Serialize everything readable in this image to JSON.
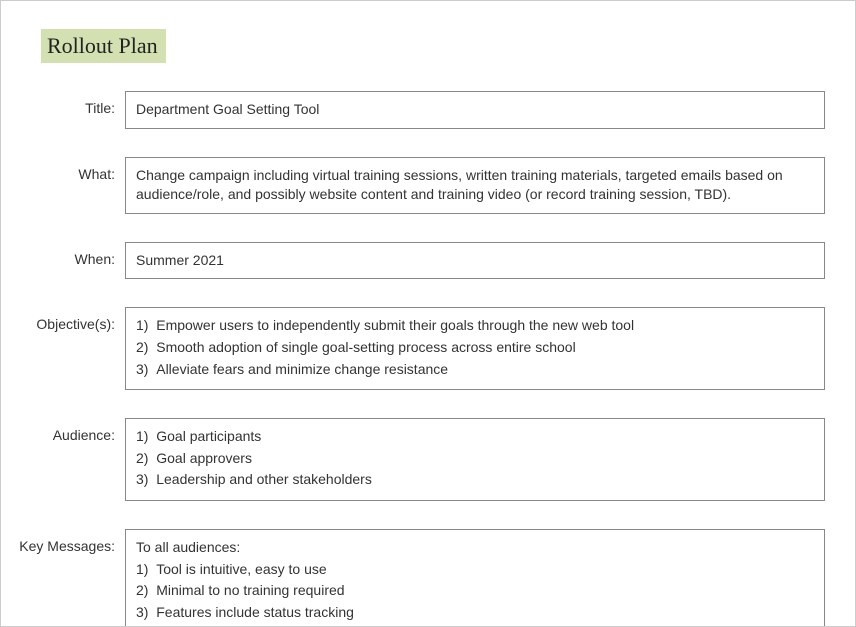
{
  "header": {
    "title": "Rollout Plan",
    "highlight_color": "#d3e0b1",
    "title_font": "Georgia",
    "title_fontsize": 22
  },
  "colors": {
    "page_border": "#cccccc",
    "field_border": "#888888",
    "text": "#333333",
    "background": "#ffffff"
  },
  "fields": {
    "title": {
      "label": "Title:",
      "value": "Department Goal Setting Tool"
    },
    "what": {
      "label": "What:",
      "value": "Change campaign including virtual training sessions, written training materials, targeted emails based on audience/role, and possibly website content and training video (or record training session, TBD)."
    },
    "when": {
      "label": "When:",
      "value": "Summer 2021"
    },
    "objectives": {
      "label": "Objective(s):",
      "items": [
        "Empower users to independently submit their goals through the new web tool",
        "Smooth adoption of single goal-setting process across entire school",
        "Alleviate fears and minimize change resistance"
      ]
    },
    "audience": {
      "label": "Audience:",
      "items": [
        "Goal participants",
        "Goal approvers",
        "Leadership and other stakeholders"
      ]
    },
    "key_messages": {
      "label": "Key Messages:",
      "lead": "To all audiences:",
      "items": [
        "Tool is intuitive, easy to use",
        "Minimal to no training required",
        "Features include status tracking"
      ]
    }
  }
}
